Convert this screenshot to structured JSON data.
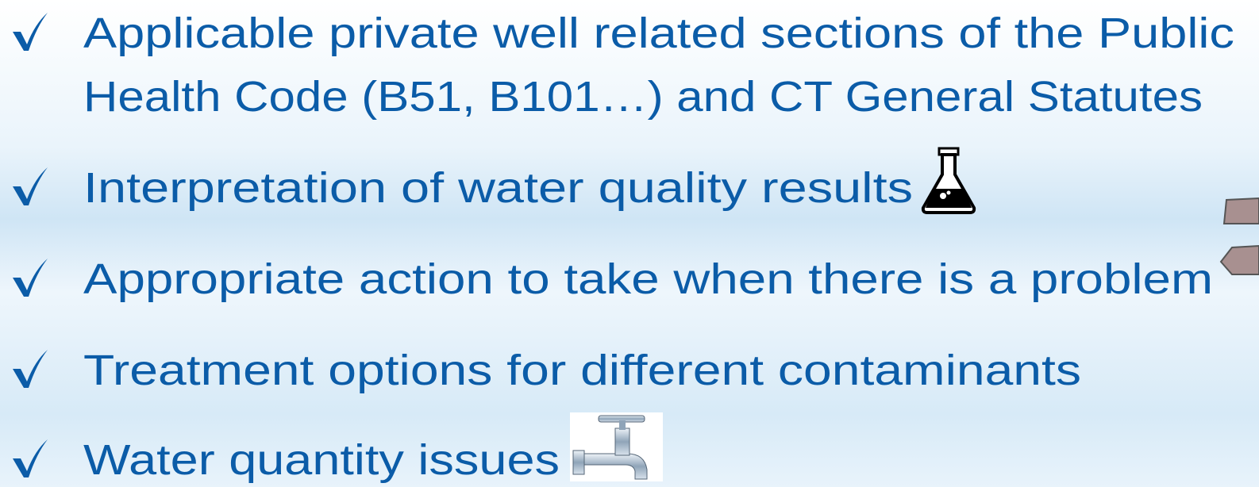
{
  "bullets": [
    {
      "lines": [
        "Applicable private well related sections of the Public",
        "Health Code (B51, B101…) and CT General Statutes"
      ]
    },
    {
      "lines": [
        "Interpretation of water quality results"
      ]
    },
    {
      "lines": [
        "Appropriate action to take when there is a problem"
      ]
    },
    {
      "lines": [
        "Treatment options for different contaminants"
      ]
    },
    {
      "lines": [
        "Water quantity issues"
      ]
    }
  ]
}
